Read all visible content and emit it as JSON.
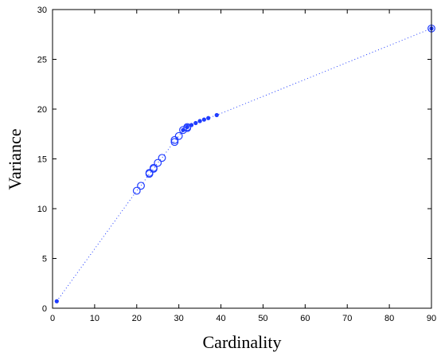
{
  "chart_data": {
    "type": "scatter",
    "title": "",
    "xlabel": "Cardinality",
    "ylabel": "Variance",
    "xlim": [
      0,
      90
    ],
    "ylim": [
      0,
      30
    ],
    "xticks": [
      0,
      10,
      20,
      30,
      40,
      50,
      60,
      70,
      80,
      90
    ],
    "yticks": [
      0,
      5,
      10,
      15,
      20,
      25,
      30
    ],
    "grid": false,
    "legend": "none",
    "colors": {
      "series": "#1f3cff",
      "axes": "#000000"
    },
    "series": [
      {
        "style": "dotted-line",
        "x": [
          1,
          20,
          21,
          23,
          24,
          25,
          26,
          29,
          30,
          31,
          32,
          33,
          34,
          35,
          36,
          37,
          39,
          90
        ],
        "y": [
          0.7,
          11.8,
          12.3,
          13.5,
          14.0,
          14.6,
          15.1,
          16.8,
          17.3,
          17.8,
          18.1,
          18.4,
          18.6,
          18.8,
          18.95,
          19.1,
          19.4,
          28.1
        ]
      },
      {
        "style": "open-circle",
        "x": [
          20,
          21,
          23,
          23,
          24,
          24,
          25,
          26,
          29,
          29,
          30,
          31,
          32,
          32,
          90
        ],
        "y": [
          11.8,
          12.3,
          13.5,
          13.6,
          14.0,
          14.1,
          14.6,
          15.1,
          16.7,
          16.9,
          17.3,
          17.9,
          18.1,
          18.2,
          28.1
        ]
      },
      {
        "style": "filled-dot",
        "x": [
          1,
          31,
          32,
          33,
          34,
          35,
          36,
          37,
          39,
          90
        ],
        "y": [
          0.7,
          17.9,
          18.2,
          18.4,
          18.6,
          18.8,
          18.95,
          19.1,
          19.4,
          28.1
        ]
      }
    ]
  }
}
